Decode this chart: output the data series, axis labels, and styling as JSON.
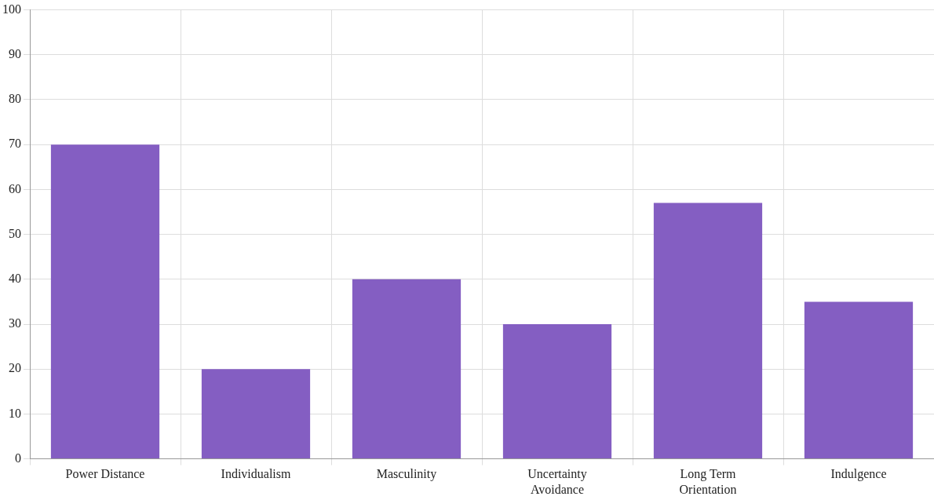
{
  "chart_data": {
    "type": "bar",
    "categories": [
      "Power Distance",
      "Individualism",
      "Masculinity",
      "Uncertainty Avoidance",
      "Long Term Orientation",
      "Indulgence"
    ],
    "values": [
      70,
      20,
      40,
      30,
      57,
      35
    ],
    "color": "#845ec2",
    "ylim": [
      0,
      100
    ],
    "yticks": [
      0,
      10,
      20,
      30,
      40,
      50,
      60,
      70,
      80,
      90,
      100
    ],
    "grid": true,
    "legend": false
  }
}
